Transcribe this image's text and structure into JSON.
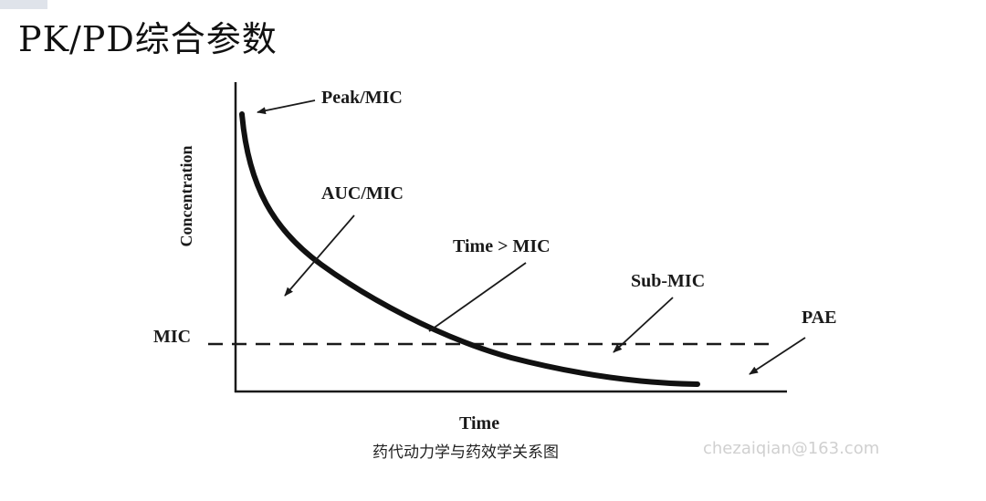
{
  "slide": {
    "title": "PK/PD综合参数"
  },
  "figure": {
    "axis_labels": {
      "y": "Concentration",
      "x": "Time"
    },
    "threshold_label": "MIC",
    "annotations": {
      "peak_mic": "Peak/MIC",
      "auc_mic": "AUC/MIC",
      "time_above_mic": "Time > MIC",
      "sub_mic": "Sub-MIC",
      "pae": "PAE"
    },
    "caption": "药代动力学与药效学关系图",
    "watermark": "chezaiqian@163.com"
  },
  "colors": {
    "ink": "#1a1a1a",
    "background": "#ffffff",
    "watermark": "#d0d0d0"
  }
}
